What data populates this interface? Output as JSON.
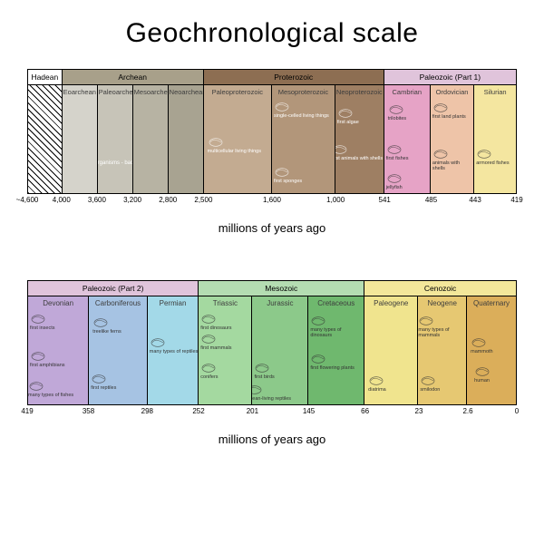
{
  "title": "Geochronological scale",
  "axis_label": "millions of years ago",
  "font_family": "Arial",
  "title_fontsize": 30,
  "axis_fontsize": 13,
  "tick_fontsize": 8,
  "period_label_fontsize": 8,
  "row1": {
    "eons": [
      {
        "label": "Hadean",
        "width_pct": 7.0,
        "color": "#ffffff"
      },
      {
        "label": "Archean",
        "width_pct": 29.0,
        "color": "#a8a08a"
      },
      {
        "label": "Proterozoic",
        "width_pct": 37.0,
        "color": "#8d6e52"
      },
      {
        "label": "Paleozoic  (Part 1)",
        "width_pct": 27.0,
        "color": "#e0c4db"
      }
    ],
    "periods": [
      {
        "label": "",
        "width_pct": 7.0,
        "color": "hatch",
        "label_color": "#000",
        "hatched": true
      },
      {
        "label": "Eoarchean",
        "width_pct": 7.25,
        "color": "#d5d3cb",
        "label_color": "#3d3d3d"
      },
      {
        "label": "Paleoarchean",
        "width_pct": 7.25,
        "color": "#c7c4b8",
        "label_color": "#3d3d3d"
      },
      {
        "label": "Mesoarchean",
        "width_pct": 7.25,
        "color": "#b7b3a3",
        "label_color": "#3d3d3d"
      },
      {
        "label": "Neoarchean",
        "width_pct": 7.25,
        "color": "#a8a391",
        "label_color": "#3d3d3d"
      },
      {
        "label": "Paleoproterozoic",
        "width_pct": 14.0,
        "color": "#c3ab91",
        "label_color": "#3d3d3d"
      },
      {
        "label": "Mesoproterozoic",
        "width_pct": 13.0,
        "color": "#b2967a",
        "label_color": "#3d3d3d"
      },
      {
        "label": "Neoproterozoic",
        "width_pct": 10.0,
        "color": "#9e7f63",
        "label_color": "#3d3d3d"
      },
      {
        "label": "Cambrian",
        "width_pct": 9.5,
        "color": "#e6a3c6",
        "label_color": "#3d3d3d"
      },
      {
        "label": "Ordovician",
        "width_pct": 9.0,
        "color": "#eec4a8",
        "label_color": "#3d3d3d"
      },
      {
        "label": "Silurian",
        "width_pct": 8.5,
        "color": "#f4e6a0",
        "label_color": "#3d3d3d"
      }
    ],
    "ticks": [
      {
        "label": "~4,600",
        "pos_pct": 0
      },
      {
        "label": "4,000",
        "pos_pct": 7.0
      },
      {
        "label": "3,600",
        "pos_pct": 14.25
      },
      {
        "label": "3,200",
        "pos_pct": 21.5
      },
      {
        "label": "2,800",
        "pos_pct": 28.75
      },
      {
        "label": "2,500",
        "pos_pct": 36.0
      },
      {
        "label": "1,600",
        "pos_pct": 50.0
      },
      {
        "label": "1,000",
        "pos_pct": 63.0
      },
      {
        "label": "541",
        "pos_pct": 73.0
      },
      {
        "label": "485",
        "pos_pct": 82.5
      },
      {
        "label": "443",
        "pos_pct": 91.5
      },
      {
        "label": "419",
        "pos_pct": 100
      }
    ],
    "organisms": {
      "archean_note": "first living organisms - bacteria",
      "proterozoic": [
        "single-celled living things",
        "first algae",
        "multicellular living things",
        "first sponges",
        "first animals with shells"
      ],
      "cambrian": [
        "trilobites",
        "first fishes",
        "jellyfish"
      ],
      "ordovician": [
        "first land plants",
        "animals with shells"
      ],
      "silurian": [
        "armored fishes"
      ]
    }
  },
  "row2": {
    "eons": [
      {
        "label": "Paleozoic  (Part 2)",
        "width_pct": 35.0,
        "color": "#e0c4db"
      },
      {
        "label": "Mesozoic",
        "width_pct": 34.0,
        "color": "#b4ddb2"
      },
      {
        "label": "Cenozoic",
        "width_pct": 31.0,
        "color": "#f3e79a"
      }
    ],
    "periods": [
      {
        "label": "Devonian",
        "width_pct": 12.5,
        "color": "#c0a8d8",
        "label_color": "#3d3d3d"
      },
      {
        "label": "Carboniferous",
        "width_pct": 12.0,
        "color": "#a6c3e3",
        "label_color": "#3d3d3d"
      },
      {
        "label": "Permian",
        "width_pct": 10.5,
        "color": "#a3d9e8",
        "label_color": "#3d3d3d"
      },
      {
        "label": "Triassic",
        "width_pct": 11.0,
        "color": "#a4d9a0",
        "label_color": "#3d3d3d"
      },
      {
        "label": "Jurassic",
        "width_pct": 11.5,
        "color": "#8cc98a",
        "label_color": "#3d3d3d"
      },
      {
        "label": "Cretaceous",
        "width_pct": 11.5,
        "color": "#6fb86e",
        "label_color": "#3d3d3d"
      },
      {
        "label": "Paleogene",
        "width_pct": 11.0,
        "color": "#f0e48e",
        "label_color": "#3d3d3d"
      },
      {
        "label": "Neogene",
        "width_pct": 10.0,
        "color": "#e6c872",
        "label_color": "#3d3d3d"
      },
      {
        "label": "Quaternary",
        "width_pct": 10.0,
        "color": "#dbae5a",
        "label_color": "#3d3d3d"
      }
    ],
    "ticks": [
      {
        "label": "419",
        "pos_pct": 0
      },
      {
        "label": "358",
        "pos_pct": 12.5
      },
      {
        "label": "298",
        "pos_pct": 24.5
      },
      {
        "label": "252",
        "pos_pct": 35.0
      },
      {
        "label": "201",
        "pos_pct": 46.0
      },
      {
        "label": "145",
        "pos_pct": 57.5
      },
      {
        "label": "66",
        "pos_pct": 69.0
      },
      {
        "label": "23",
        "pos_pct": 80.0
      },
      {
        "label": "2.6",
        "pos_pct": 90.0
      },
      {
        "label": "0",
        "pos_pct": 100
      }
    ],
    "organisms": {
      "devonian": [
        "first insects",
        "first amphibians",
        "many types of fishes"
      ],
      "carboniferous": [
        "treelike ferns",
        "first reptiles"
      ],
      "permian": [
        "many types of reptiles"
      ],
      "triassic": [
        "first dinosaurs",
        "first mammals",
        "conifers"
      ],
      "jurassic": [
        "first birds",
        "ocean-living reptiles"
      ],
      "cretaceous": [
        "many types of dinosaurs",
        "first flowering plants"
      ],
      "paleogene": [
        "diatrima"
      ],
      "neogene": [
        "many types of mammals",
        "smilodon"
      ],
      "quaternary": [
        "mammoth",
        "human"
      ]
    }
  }
}
